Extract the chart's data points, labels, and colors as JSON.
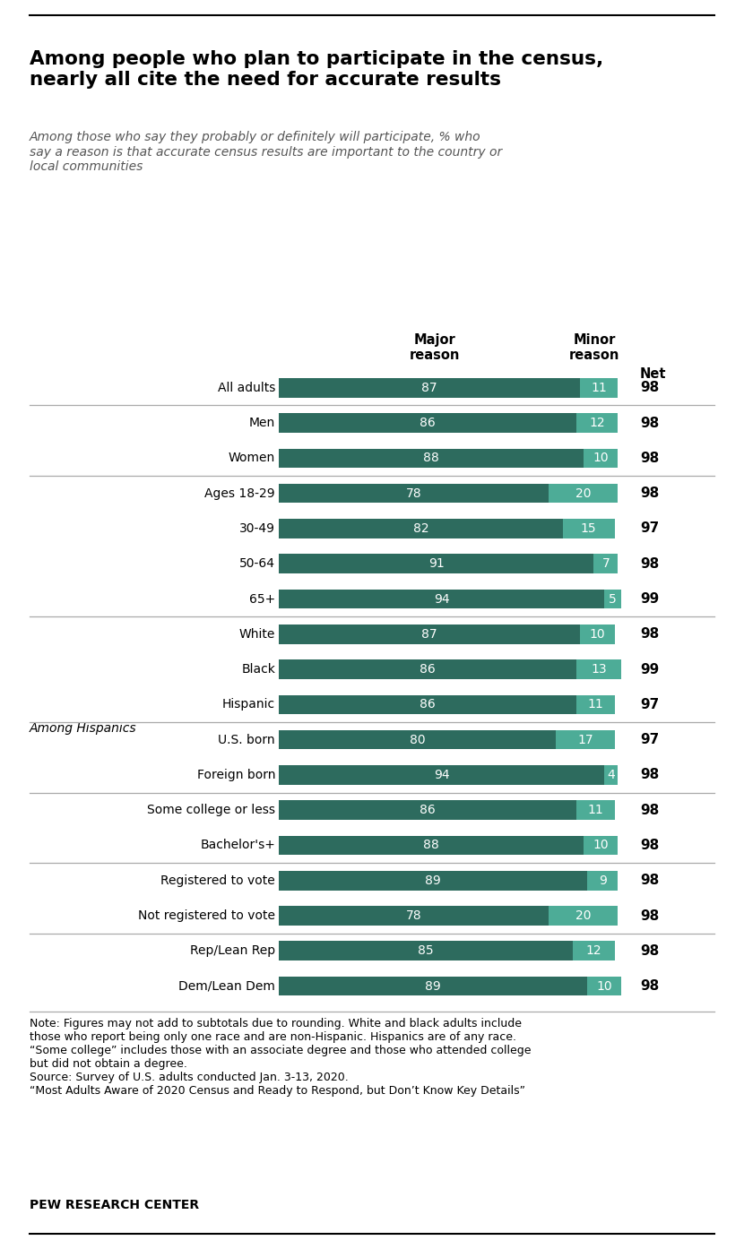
{
  "title": "Among people who plan to participate in the census,\nnearly all cite the need for accurate results",
  "subtitle": "Among those who say they probably or definitely will participate, % who\nsay a reason is that accurate census results are important to the country or\nlocal communities",
  "col_header_major": "Major\nreason",
  "col_header_minor": "Minor\nreason",
  "col_header_net": "Net",
  "categories": [
    "All adults",
    "Men",
    "Women",
    "Ages 18-29",
    "30-49",
    "50-64",
    "65+",
    "White",
    "Black",
    "Hispanic",
    "U.S. born",
    "Foreign born",
    "Some college or less",
    "Bachelor's+",
    "Registered to vote",
    "Not registered to vote",
    "Rep/Lean Rep",
    "Dem/Lean Dem"
  ],
  "major": [
    87,
    86,
    88,
    78,
    82,
    91,
    94,
    87,
    86,
    86,
    80,
    94,
    86,
    88,
    89,
    78,
    85,
    89
  ],
  "minor": [
    11,
    12,
    10,
    20,
    15,
    7,
    5,
    10,
    13,
    11,
    17,
    4,
    11,
    10,
    9,
    20,
    12,
    10
  ],
  "net": [
    98,
    98,
    98,
    98,
    97,
    98,
    99,
    98,
    99,
    97,
    97,
    98,
    98,
    98,
    98,
    98,
    98,
    98
  ],
  "color_major": "#2d6b5e",
  "color_minor": "#4dac97",
  "section_label": "Among Hispanics",
  "section_label_idx": 10,
  "divider_after_idx": [
    0,
    2,
    6,
    9,
    11,
    13,
    15
  ],
  "note_text": "Note: Figures may not add to subtotals due to rounding. White and black adults include\nthose who report being only one race and are non-Hispanic. Hispanics are of any race.\n“Some college” includes those with an associate degree and those who attended college\nbut did not obtain a degree.\nSource: Survey of U.S. adults conducted Jan. 3-13, 2020.\n“Most Adults Aware of 2020 Census and Ready to Respond, but Don’t Know Key Details”",
  "footer": "PEW RESEARCH CENTER",
  "fig_width": 8.3,
  "fig_height": 13.94,
  "dpi": 100
}
